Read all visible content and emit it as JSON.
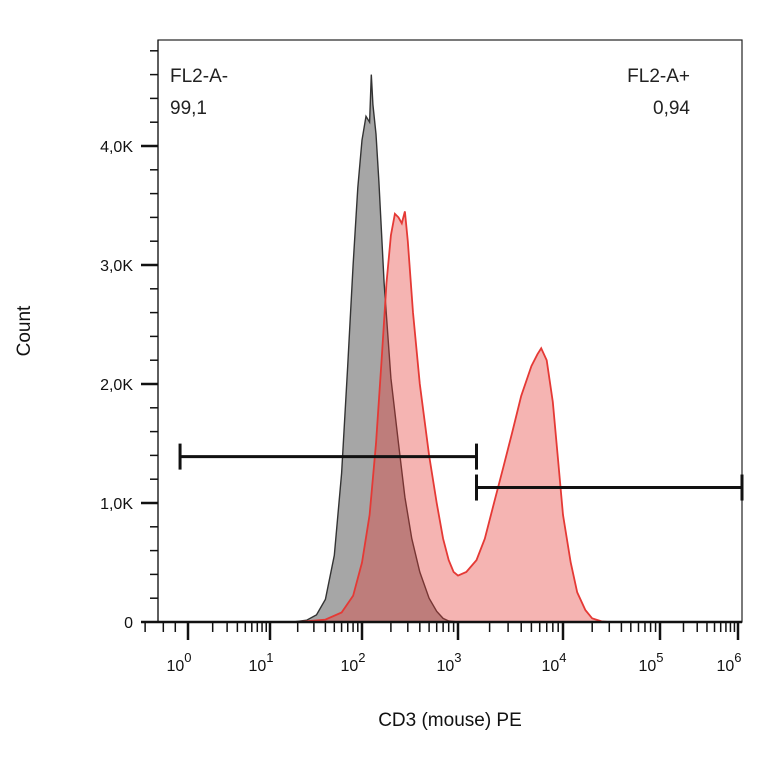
{
  "chart_data": {
    "type": "area",
    "xlabel": "CD3 (mouse) PE",
    "ylabel": "Count",
    "x_scale": "biexponential",
    "ylim": [
      0,
      4900
    ],
    "y_ticks": [
      {
        "value": 0,
        "label": "0"
      },
      {
        "value": 1000,
        "label": "1,0K"
      },
      {
        "value": 2000,
        "label": "2,0K"
      },
      {
        "value": 3000,
        "label": "3,0K"
      },
      {
        "value": 4000,
        "label": "4,0K"
      }
    ],
    "x_ticks": [
      {
        "value": 1,
        "base": "10",
        "exp": "0"
      },
      {
        "value": 10,
        "base": "10",
        "exp": "1"
      },
      {
        "value": 100,
        "base": "10",
        "exp": "2"
      },
      {
        "value": 1000,
        "base": "10",
        "exp": "3"
      },
      {
        "value": 10000,
        "base": "10",
        "exp": "4"
      },
      {
        "value": 100000,
        "base": "10",
        "exp": "5"
      },
      {
        "value": 1000000,
        "base": "10",
        "exp": "6"
      }
    ],
    "series": [
      {
        "color": "#888888",
        "points": [
          [
            5,
            0
          ],
          [
            10,
            0
          ],
          [
            18,
            0
          ],
          [
            25,
            15
          ],
          [
            32,
            60
          ],
          [
            40,
            190
          ],
          [
            50,
            560
          ],
          [
            60,
            1250
          ],
          [
            70,
            2150
          ],
          [
            80,
            3000
          ],
          [
            90,
            3650
          ],
          [
            100,
            4050
          ],
          [
            110,
            4250
          ],
          [
            120,
            4200
          ],
          [
            125,
            4600
          ],
          [
            130,
            4350
          ],
          [
            140,
            4100
          ],
          [
            150,
            3700
          ],
          [
            170,
            2850
          ],
          [
            200,
            2050
          ],
          [
            240,
            1500
          ],
          [
            280,
            1050
          ],
          [
            330,
            700
          ],
          [
            400,
            420
          ],
          [
            500,
            200
          ],
          [
            600,
            90
          ],
          [
            700,
            30
          ],
          [
            800,
            8
          ],
          [
            1000,
            0
          ],
          [
            2000,
            0
          ]
        ]
      },
      {
        "color": "#e53935",
        "points": [
          [
            5,
            0
          ],
          [
            20,
            0
          ],
          [
            40,
            20
          ],
          [
            60,
            80
          ],
          [
            80,
            220
          ],
          [
            100,
            500
          ],
          [
            120,
            900
          ],
          [
            140,
            1500
          ],
          [
            160,
            2200
          ],
          [
            180,
            2850
          ],
          [
            200,
            3250
          ],
          [
            220,
            3430
          ],
          [
            240,
            3400
          ],
          [
            260,
            3350
          ],
          [
            280,
            3450
          ],
          [
            300,
            3200
          ],
          [
            340,
            2600
          ],
          [
            400,
            2000
          ],
          [
            500,
            1400
          ],
          [
            600,
            1000
          ],
          [
            700,
            700
          ],
          [
            800,
            520
          ],
          [
            900,
            420
          ],
          [
            1000,
            390
          ],
          [
            1200,
            420
          ],
          [
            1500,
            520
          ],
          [
            1800,
            700
          ],
          [
            2200,
            1000
          ],
          [
            2700,
            1300
          ],
          [
            3300,
            1600
          ],
          [
            4000,
            1900
          ],
          [
            5000,
            2150
          ],
          [
            5700,
            2250
          ],
          [
            6200,
            2300
          ],
          [
            7000,
            2200
          ],
          [
            8000,
            1850
          ],
          [
            9000,
            1350
          ],
          [
            10000,
            900
          ],
          [
            12000,
            500
          ],
          [
            14000,
            250
          ],
          [
            17000,
            100
          ],
          [
            20000,
            30
          ],
          [
            25000,
            5
          ],
          [
            30000,
            0
          ],
          [
            100000,
            0
          ],
          [
            1000000,
            0
          ]
        ]
      }
    ],
    "gates": [
      {
        "name": "FL2-A-",
        "percent": "99,1",
        "x_range": [
          0.8,
          1500
        ],
        "y": 1390
      },
      {
        "name": "FL2-A+",
        "percent": "0,94",
        "x_range": [
          1500,
          1300000
        ],
        "y": 1130
      }
    ]
  }
}
